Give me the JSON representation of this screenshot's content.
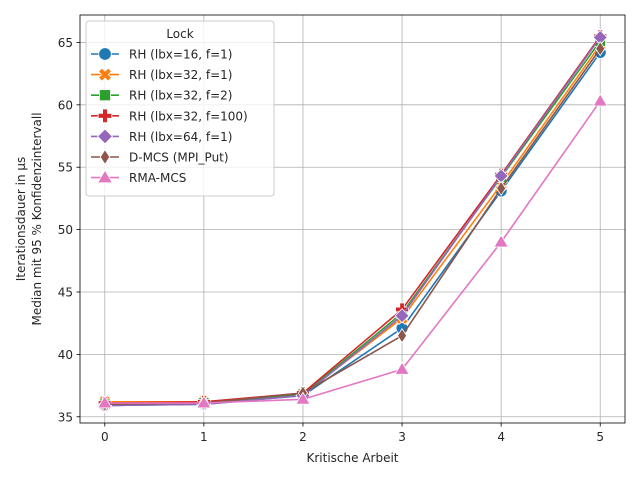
{
  "chart_data": {
    "type": "line",
    "xlabel": "Kritische Arbeit",
    "ylabel_lines": [
      "Iterationsdauer in µs",
      "Median mit 95 % Konfidenzintervall"
    ],
    "x": [
      0,
      1,
      2,
      3,
      4,
      5
    ],
    "xlim": [
      -0.25,
      5.25
    ],
    "ylim": [
      34.5,
      67.2
    ],
    "xticks": [
      0,
      1,
      2,
      3,
      4,
      5
    ],
    "yticks": [
      35,
      40,
      45,
      50,
      55,
      60,
      65
    ],
    "grid": true,
    "legend": {
      "title": "Lock",
      "placement": "top-left"
    },
    "series": [
      {
        "name": "RH (lbx=16, f=1)",
        "color": "#1f77b4",
        "marker": "circle",
        "values": [
          35.9,
          36.0,
          36.7,
          42.1,
          53.1,
          64.2
        ]
      },
      {
        "name": "RH (lbx=32, f=1)",
        "color": "#ff7f0e",
        "marker": "x-filled",
        "values": [
          36.2,
          36.2,
          36.8,
          42.9,
          53.6,
          64.8
        ]
      },
      {
        "name": "RH (lbx=32, f=2)",
        "color": "#2ca02c",
        "marker": "square",
        "values": [
          36.0,
          36.1,
          36.8,
          43.3,
          54.2,
          65.1
        ]
      },
      {
        "name": "RH (lbx=32, f=100)",
        "color": "#d62728",
        "marker": "plus-filled",
        "values": [
          36.1,
          36.2,
          36.9,
          43.6,
          54.4,
          65.5
        ]
      },
      {
        "name": "RH (lbx=64, f=1)",
        "color": "#9467bd",
        "marker": "diamond",
        "values": [
          35.9,
          36.0,
          36.7,
          43.1,
          54.3,
          65.4
        ]
      },
      {
        "name": "D-MCS (MPI_Put)",
        "color": "#8c564b",
        "marker": "thin-diamond",
        "values": [
          36.0,
          36.1,
          36.9,
          41.5,
          53.3,
          64.5
        ]
      },
      {
        "name": "RMA-MCS",
        "color": "#e377c2",
        "marker": "triangle",
        "values": [
          36.1,
          36.1,
          36.4,
          38.8,
          49.0,
          60.3
        ]
      }
    ]
  }
}
